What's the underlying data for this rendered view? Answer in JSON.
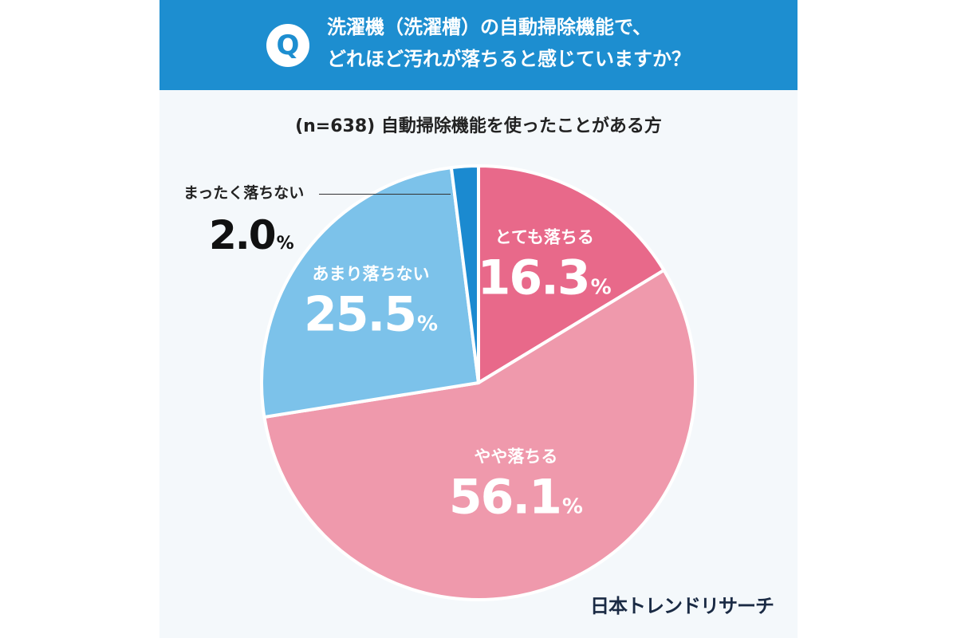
{
  "question": {
    "badge": "Q",
    "line1": "洗濯機（洗濯槽）の自動掃除機能で、",
    "line2": "どれほど汚れが落ちると感じていますか？"
  },
  "subtitle": "(n=638) 自動掃除機能を使ったことがある方",
  "brand": "日本トレンドリサーチ",
  "chart_data": {
    "type": "pie",
    "unit": "%",
    "slices": [
      {
        "label": "とても落ちる",
        "value": 16.3,
        "value_text": "16.3",
        "color": "#e8698a"
      },
      {
        "label": "やや落ちる",
        "value": 56.1,
        "value_text": "56.1",
        "color": "#ef99ac"
      },
      {
        "label": "あまり落ちない",
        "value": 25.5,
        "value_text": "25.5",
        "color": "#7cc2ea"
      },
      {
        "label": "まったく落ちない",
        "value": 2.0,
        "value_text": "2.0",
        "color": "#1b8ad0"
      }
    ]
  }
}
